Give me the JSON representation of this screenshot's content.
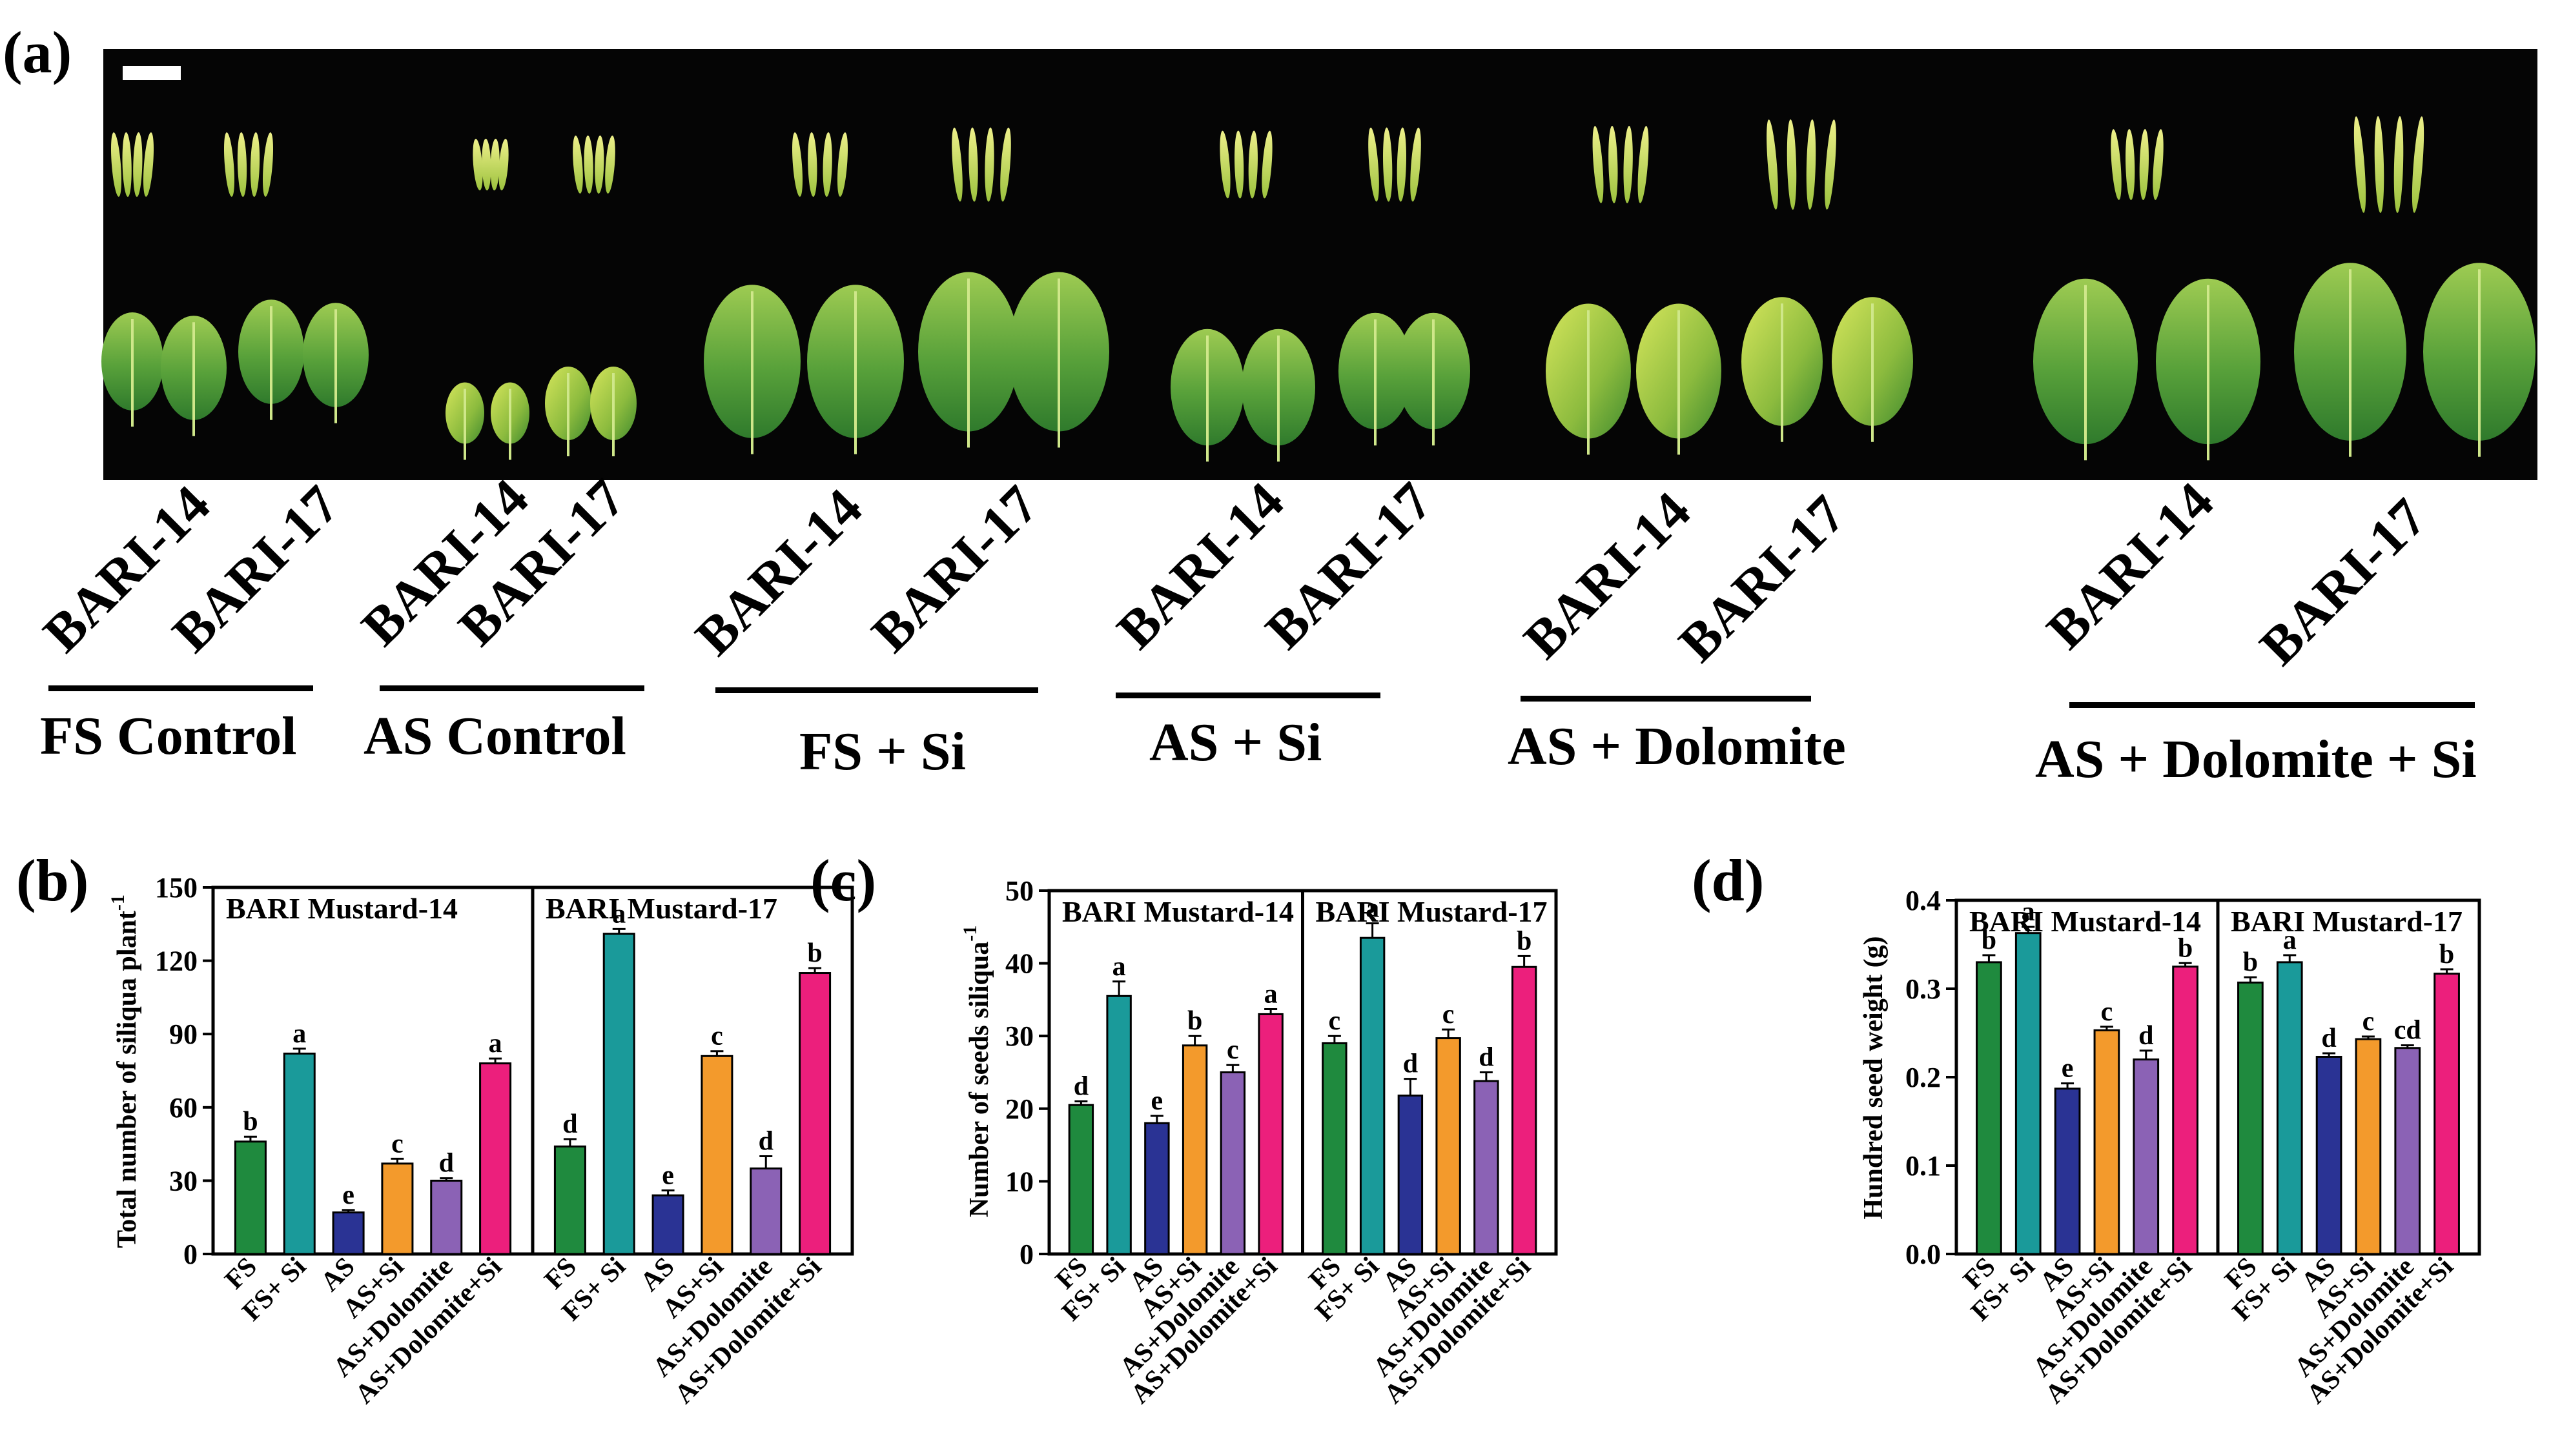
{
  "panel_a": {
    "label": "(a)",
    "groups": [
      {
        "name": "FS Control",
        "varieties": [
          "BARI-14",
          "BARI-17"
        ]
      },
      {
        "name": "AS Control",
        "varieties": [
          "BARI-14",
          "BARI-17"
        ]
      },
      {
        "name": "FS + Si",
        "varieties": [
          "BARI-14",
          "BARI-17"
        ]
      },
      {
        "name": "AS + Si",
        "varieties": [
          "BARI-14",
          "BARI-17"
        ]
      },
      {
        "name": "AS + Dolomite",
        "varieties": [
          "BARI-14",
          "BARI-17"
        ]
      },
      {
        "name": "AS + Dolomite + Si",
        "varieties": [
          "BARI-14",
          "BARI-17"
        ]
      }
    ]
  },
  "colors": [
    "#1f8a3e",
    "#1a9a9a",
    "#2a3394",
    "#f39a2c",
    "#8b62b5",
    "#ec1f7c"
  ],
  "chart_data": [
    {
      "panel": "(b)",
      "type": "bar",
      "ylabel_main": "Total number of siliqua plant",
      "ylabel_sup": "-1",
      "ylim": [
        0,
        150
      ],
      "yticks": [
        0,
        30,
        60,
        90,
        120,
        150
      ],
      "facets": [
        "BARI Mustard-14",
        "BARI Mustard-17"
      ],
      "categories": [
        "FS",
        "FS+ Si",
        "AS",
        "AS+Si",
        "AS+Dolomite",
        "AS+Dolomite+Si"
      ],
      "series": [
        {
          "name": "BARI Mustard-14",
          "values": [
            46,
            82,
            17,
            37,
            30,
            78
          ],
          "errors": [
            2,
            2,
            1,
            2,
            1,
            2
          ],
          "letters": [
            "b",
            "a",
            "e",
            "c",
            "d",
            "a"
          ]
        },
        {
          "name": "BARI Mustard-17",
          "values": [
            44,
            131,
            24,
            81,
            35,
            115
          ],
          "errors": [
            3,
            2,
            2,
            2,
            5,
            2
          ],
          "letters": [
            "d",
            "a",
            "e",
            "c",
            "d",
            "b"
          ]
        }
      ]
    },
    {
      "panel": "(c)",
      "type": "bar",
      "ylabel_main": "Number of seeds siliqua",
      "ylabel_sup": "-1",
      "ylim": [
        0,
        50
      ],
      "yticks": [
        0,
        10,
        20,
        30,
        40,
        50
      ],
      "facets": [
        "BARI Mustard-14",
        "BARI Mustard-17"
      ],
      "categories": [
        "FS",
        "FS+ Si",
        "AS",
        "AS+Si",
        "AS+Dolomite",
        "AS+Dolomite+Si"
      ],
      "series": [
        {
          "name": "BARI Mustard-14",
          "values": [
            20.5,
            35.5,
            18,
            28.7,
            25,
            33
          ],
          "errors": [
            0.5,
            2,
            1,
            1.3,
            1,
            0.7
          ],
          "letters": [
            "d",
            "a",
            "e",
            "b",
            "c",
            "a"
          ]
        },
        {
          "name": "BARI Mustard-17",
          "values": [
            29,
            43.5,
            21.8,
            29.7,
            23.8,
            39.5
          ],
          "errors": [
            1,
            2,
            2.3,
            1.2,
            1.2,
            1.5
          ],
          "letters": [
            "c",
            "a",
            "d",
            "c",
            "d",
            "b"
          ]
        }
      ]
    },
    {
      "panel": "(d)",
      "type": "bar",
      "ylabel_main": "Hundred seed weight (g)",
      "ylabel_sup": "",
      "ylim": [
        0,
        0.4
      ],
      "yticks": [
        0.0,
        0.1,
        0.2,
        0.3,
        0.4
      ],
      "facets": [
        "BARI Mustard-14",
        "BARI Mustard-17"
      ],
      "categories": [
        "FS",
        "FS+ Si",
        "AS",
        "AS+Si",
        "AS+Dolomite",
        "AS+Dolomite+Si"
      ],
      "series": [
        {
          "name": "BARI Mustard-14",
          "values": [
            0.33,
            0.363,
            0.187,
            0.253,
            0.22,
            0.325
          ],
          "errors": [
            0.008,
            0.007,
            0.006,
            0.004,
            0.01,
            0.004
          ],
          "letters": [
            "b",
            "a",
            "e",
            "c",
            "d",
            "b"
          ]
        },
        {
          "name": "BARI Mustard-17",
          "values": [
            0.307,
            0.33,
            0.223,
            0.243,
            0.233,
            0.317
          ],
          "errors": [
            0.006,
            0.008,
            0.004,
            0.003,
            0.003,
            0.005
          ],
          "letters": [
            "b",
            "a",
            "d",
            "c",
            "cd",
            "b"
          ]
        }
      ]
    }
  ]
}
